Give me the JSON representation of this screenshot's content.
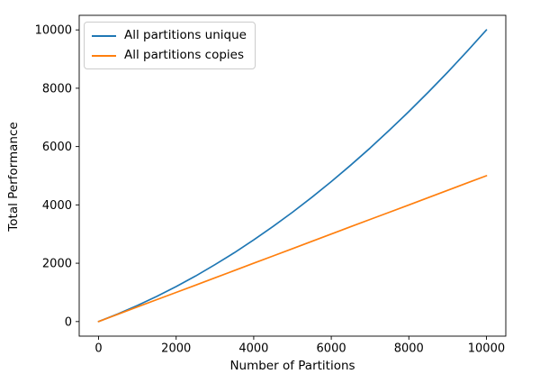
{
  "figure": {
    "background": "#ffffff"
  },
  "chart_data": {
    "type": "line",
    "title": "",
    "xlabel": "Number of Partitions",
    "ylabel": "Total Performance",
    "xlim": [
      -500,
      10500
    ],
    "ylim": [
      -500,
      10500
    ],
    "x_ticks": [
      0,
      2000,
      4000,
      6000,
      8000,
      10000
    ],
    "y_ticks": [
      0,
      2000,
      4000,
      6000,
      8000,
      10000
    ],
    "grid": false,
    "legend_position": "upper-left",
    "x": [
      0,
      500,
      1000,
      1500,
      2000,
      2500,
      3000,
      3500,
      4000,
      4500,
      5000,
      5500,
      6000,
      6500,
      7000,
      7500,
      8000,
      8500,
      9000,
      9500,
      10000
    ],
    "series": [
      {
        "name": "All partitions unique",
        "color": "#1f77b4",
        "values": [
          0,
          262,
          550,
          862,
          1200,
          1562,
          1950,
          2362,
          2800,
          3262,
          3750,
          4262,
          4800,
          5362,
          5950,
          6562,
          7200,
          7862,
          8550,
          9262,
          10000
        ]
      },
      {
        "name": "All partitions copies",
        "color": "#ff7f0e",
        "values": [
          0,
          250,
          500,
          750,
          1000,
          1250,
          1500,
          1750,
          2000,
          2250,
          2500,
          2750,
          3000,
          3250,
          3500,
          3750,
          4000,
          4250,
          4500,
          4750,
          5000
        ]
      }
    ]
  }
}
